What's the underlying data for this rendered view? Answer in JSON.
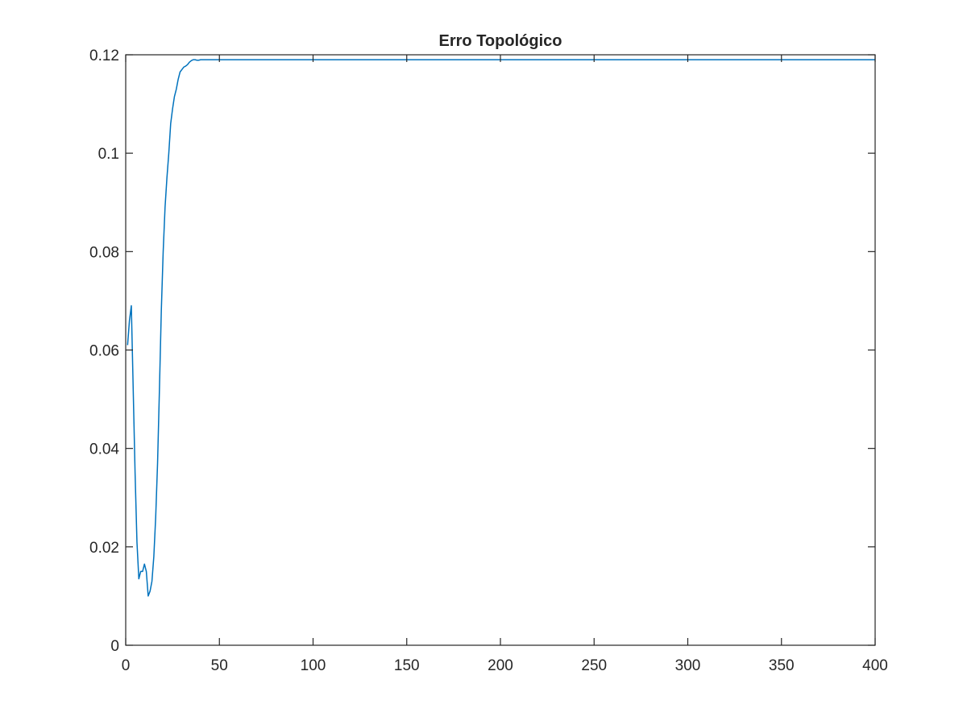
{
  "chart_data": {
    "type": "line",
    "title": "Erro Topológico",
    "xlabel": "",
    "ylabel": "",
    "xlim": [
      0,
      400
    ],
    "ylim": [
      0,
      0.12
    ],
    "xticks": [
      0,
      50,
      100,
      150,
      200,
      250,
      300,
      350,
      400
    ],
    "xtick_labels": [
      "0",
      "50",
      "100",
      "150",
      "200",
      "250",
      "300",
      "350",
      "400"
    ],
    "yticks": [
      0,
      0.02,
      0.04,
      0.06,
      0.08,
      0.1,
      0.12
    ],
    "ytick_labels": [
      "0",
      "0.02",
      "0.04",
      "0.06",
      "0.08",
      "0.1",
      "0.12"
    ],
    "grid": false,
    "line_color": "#0072BD",
    "series": [
      {
        "x": [
          1,
          2,
          3,
          4,
          5,
          6,
          7,
          8,
          9,
          10,
          11,
          12,
          13,
          14,
          15,
          16,
          17,
          18,
          19,
          20,
          21,
          22,
          23,
          24,
          25,
          26,
          27,
          28,
          29,
          30,
          31,
          32,
          33,
          34,
          35,
          36,
          37,
          38,
          39,
          40,
          41,
          42,
          43,
          44,
          45,
          50,
          60,
          100,
          200,
          300,
          400
        ],
        "y": [
          0.061,
          0.066,
          0.069,
          0.052,
          0.035,
          0.021,
          0.0135,
          0.015,
          0.015,
          0.0165,
          0.015,
          0.01,
          0.011,
          0.013,
          0.018,
          0.026,
          0.037,
          0.052,
          0.068,
          0.08,
          0.089,
          0.095,
          0.1,
          0.106,
          0.109,
          0.1115,
          0.113,
          0.115,
          0.1165,
          0.117,
          0.1175,
          0.1177,
          0.118,
          0.1185,
          0.1188,
          0.119,
          0.119,
          0.1189,
          0.1189,
          0.119,
          0.119,
          0.119,
          0.119,
          0.119,
          0.119,
          0.119,
          0.119,
          0.119,
          0.119,
          0.119,
          0.119
        ]
      }
    ]
  }
}
